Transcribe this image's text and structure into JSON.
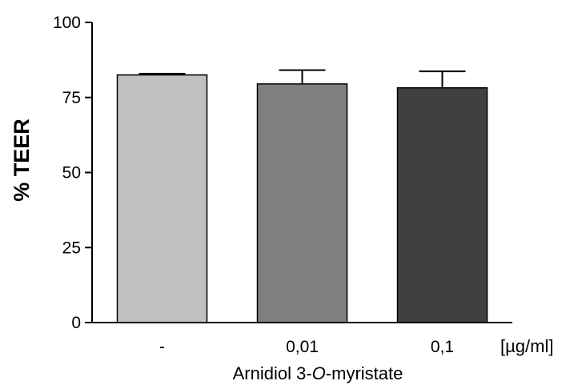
{
  "chart_data": {
    "type": "bar",
    "categories": [
      "-",
      "0,01",
      "0,1"
    ],
    "values": [
      82.5,
      79.5,
      78.2
    ],
    "errors": [
      0.4,
      4.6,
      5.5
    ],
    "colors": [
      "#c0c0c0",
      "#7f7f7f",
      "#404040"
    ],
    "ylabel": "% TEER",
    "xlabel_prefix": "Arnidiol 3-",
    "xlabel_italic": "O",
    "xlabel_suffix": "-myristate",
    "unit": "[µg/ml]",
    "ylim": [
      0,
      100
    ],
    "yticks": [
      0,
      25,
      50,
      75,
      100
    ],
    "grid": false
  }
}
